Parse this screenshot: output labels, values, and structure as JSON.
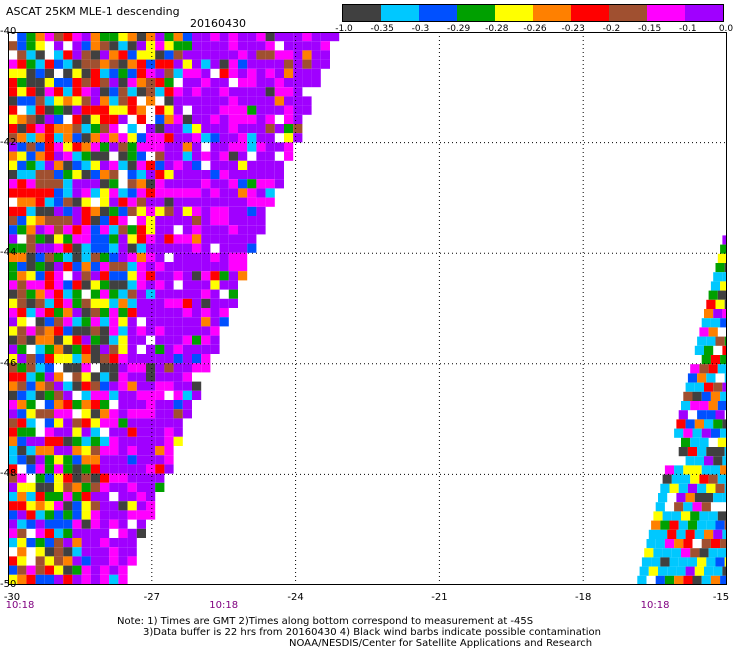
{
  "title": "ASCAT 25KM MLE-1 descending",
  "date": "20160430",
  "colorbar": {
    "labels": [
      "-1.0",
      "-0.35",
      "-0.3",
      "-0.29",
      "-0.28",
      "-0.26",
      "-0.23",
      "-0.2",
      "-0.15",
      "-0.1",
      "0.0"
    ],
    "colors": [
      "#404040",
      "#00c8ff",
      "#0050ff",
      "#00a000",
      "#ffff00",
      "#ff8000",
      "#ff0000",
      "#a05030",
      "#ff00ff",
      "#a000ff"
    ]
  },
  "axes": {
    "lon_labels": [
      "-30",
      "-27",
      "-24",
      "-21",
      "-18",
      "-15"
    ],
    "lat_labels": [
      "-40",
      "-42",
      "-44",
      "-46",
      "-48",
      "-50"
    ],
    "lon_range": [
      -30,
      -15
    ],
    "lat_range": [
      -50,
      -40
    ],
    "grid": "dotted"
  },
  "time_labels": [
    "10:18",
    "10:18",
    "10:18"
  ],
  "notes": [
    "Note: 1) Times are GMT 2)Times along bottom correspond to measurement at -45S",
    "3)Data buffer is 22 hrs from 20160430 4) Black wind barbs indicate possible contamination",
    "NOAA/NESDIS/Center for Satellite Applications and Research"
  ]
}
